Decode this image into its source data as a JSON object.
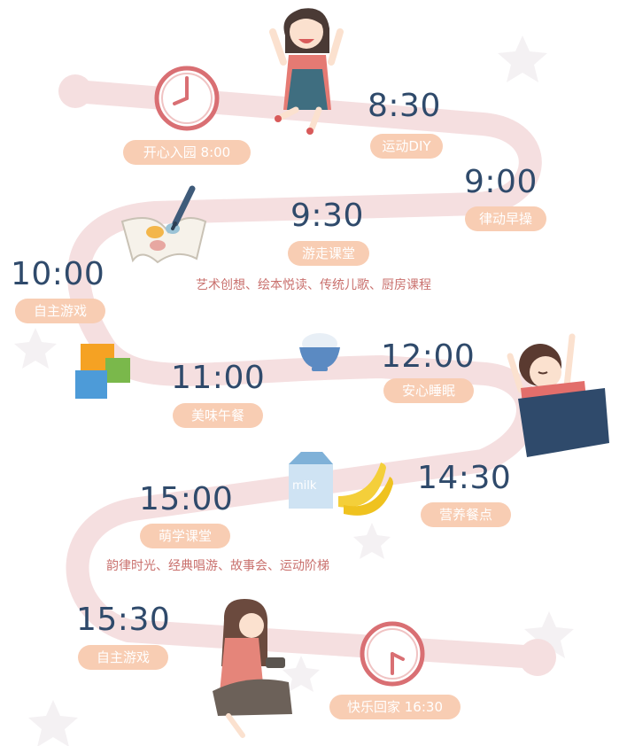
{
  "colors": {
    "road": "#f5dfe0",
    "pill_bg": "#f8cdb3",
    "time_text": "#2f4a6b",
    "subtext": "#c9706d",
    "clock": "#d96f73"
  },
  "schedule": [
    {
      "id": "arrive",
      "label": "开心入园  8:00"
    },
    {
      "id": "sports",
      "time": "8:30",
      "label": "运动DIY"
    },
    {
      "id": "rhythm",
      "time": "9:00",
      "label": "律动早操"
    },
    {
      "id": "classes",
      "time": "9:30",
      "label": "游走课堂",
      "detail": "艺术创想、绘本悦读、传统儿歌、厨房课程"
    },
    {
      "id": "play1",
      "time": "10:00",
      "label": "自主游戏"
    },
    {
      "id": "lunch",
      "time": "11:00",
      "label": "美味午餐"
    },
    {
      "id": "nap",
      "time": "12:00",
      "label": "安心睡眠"
    },
    {
      "id": "snack",
      "time": "14:30",
      "label": "营养餐点"
    },
    {
      "id": "learn",
      "time": "15:00",
      "label": "萌学课堂",
      "detail": "韵律时光、经典唱游、故事会、运动阶梯"
    },
    {
      "id": "play2",
      "time": "15:30",
      "label": "自主游戏"
    },
    {
      "id": "leave",
      "label": "快乐回家  16:30"
    }
  ],
  "icons": {
    "clock_start": "clock-icon",
    "clock_end": "clock-icon",
    "girl_jumping": "girl-jumping-illustration",
    "book": "book-pencil-icon",
    "blocks": "toy-blocks-icon",
    "bowl": "rice-bowl-icon",
    "sleeping_girl": "sleeping-girl-illustration",
    "milk": "milk-carton-icon",
    "milk_text": "milk",
    "banana": "banana-icon",
    "girl_sitting": "girl-sitting-illustration"
  }
}
